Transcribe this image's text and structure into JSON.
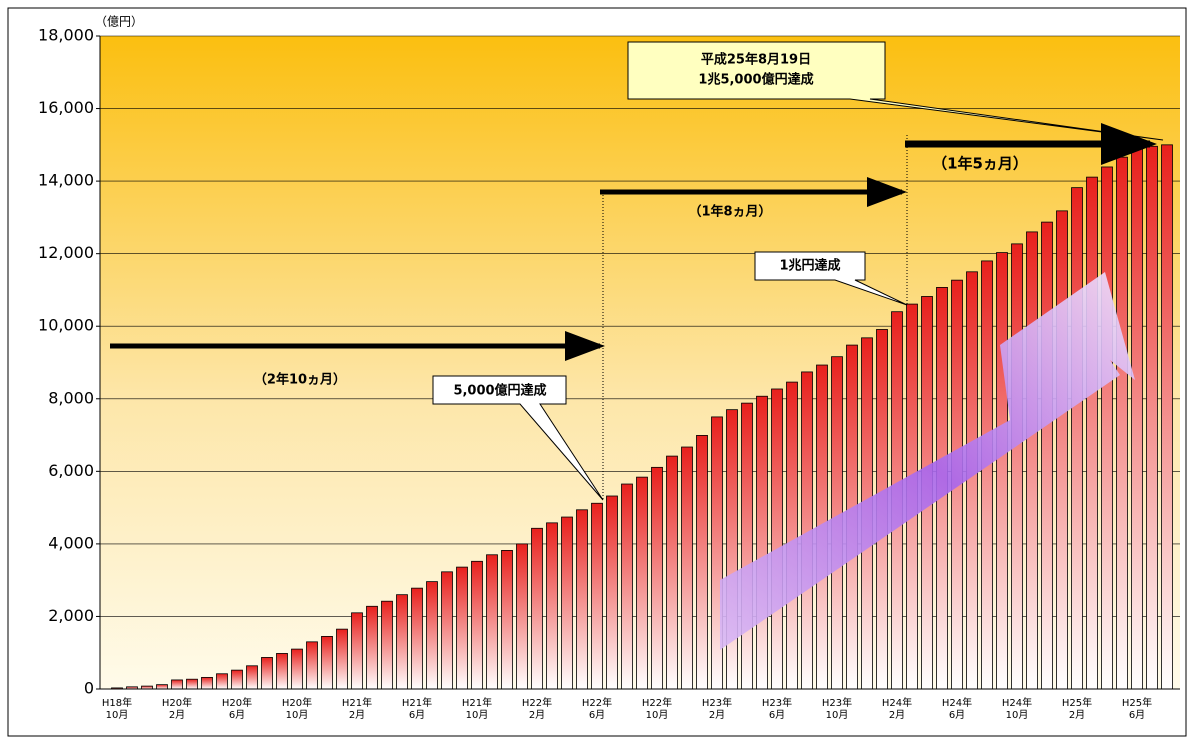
{
  "chart_data": {
    "type": "bar",
    "unit_label": "（億円）",
    "categories": [
      [
        "H18年",
        "10月"
      ],
      null,
      null,
      null,
      [
        "H20年",
        "2月"
      ],
      null,
      null,
      null,
      [
        "H20年",
        "6月"
      ],
      null,
      null,
      null,
      [
        "H20年",
        "10月"
      ],
      null,
      null,
      null,
      [
        "H21年",
        "2月"
      ],
      null,
      null,
      null,
      [
        "H21年",
        "6月"
      ],
      null,
      null,
      null,
      [
        "H21年",
        "10月"
      ],
      null,
      null,
      null,
      [
        "H22年",
        "2月"
      ],
      null,
      null,
      null,
      [
        "H22年",
        "6月"
      ],
      null,
      null,
      null,
      [
        "H22年",
        "10月"
      ],
      null,
      null,
      null,
      [
        "H23年",
        "2月"
      ],
      null,
      null,
      null,
      [
        "H23年",
        "6月"
      ],
      null,
      null,
      null,
      [
        "H23年",
        "10月"
      ],
      null,
      null,
      null,
      [
        "H24年",
        "2月"
      ],
      null,
      null,
      null,
      [
        "H24年",
        "6月"
      ],
      null,
      null,
      null,
      [
        "H24年",
        "10月"
      ],
      null,
      null,
      null,
      [
        "H25年",
        "2月"
      ],
      null,
      null,
      null,
      [
        "H25年",
        "6月"
      ],
      null,
      null
    ],
    "values": [
      30,
      60,
      80,
      120,
      250,
      270,
      320,
      420,
      520,
      640,
      870,
      980,
      1100,
      1300,
      1450,
      1650,
      2100,
      2280,
      2420,
      2600,
      2780,
      2960,
      3230,
      3360,
      3520,
      3700,
      3820,
      4000,
      4430,
      4580,
      4740,
      4940,
      5120,
      5320,
      5650,
      5840,
      6110,
      6420,
      6670,
      6990,
      7500,
      7700,
      7880,
      8070,
      8270,
      8460,
      8740,
      8930,
      9160,
      9480,
      9680,
      9910,
      10400,
      10610,
      10820,
      11070,
      11270,
      11500,
      11800,
      12030,
      12270,
      12600,
      12870,
      13180,
      13820,
      14110,
      14390,
      14660,
      14900,
      14960,
      15000
    ],
    "color": "#e8201c",
    "ylim": [
      0,
      18000
    ],
    "yticks": [
      0,
      {
        "value": 2000,
        "label": "2,000"
      },
      {
        "value": 4000,
        "label": "4,000"
      },
      {
        "value": 6000,
        "label": "6,000"
      },
      {
        "value": 8000,
        "label": "8,000"
      },
      {
        "value": 10000,
        "label": "10,000"
      },
      {
        "value": 12000,
        "label": "12,000"
      },
      {
        "value": 14000,
        "label": "14,000"
      },
      {
        "value": 16000,
        "label": "16,000"
      },
      {
        "value": 18000,
        "label": "18,000"
      }
    ],
    "grid": true,
    "annotations": [
      "（2年10ヵ月）",
      "（1年8ヵ月）",
      "（1年5ヵ月）",
      "5,000億円達成",
      "1兆円達成",
      [
        "平成25年8月19日",
        "1兆5,000億円達成"
      ]
    ]
  }
}
